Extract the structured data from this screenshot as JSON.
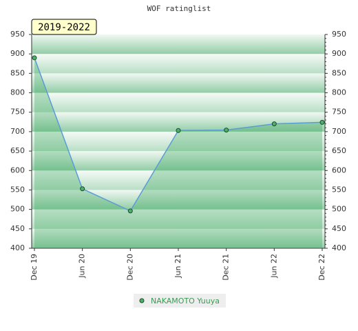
{
  "chart_data": {
    "type": "line",
    "title": "WOF ratinglist",
    "annotation": "2019-2022",
    "categories": [
      "Dec 19",
      "Jun 20",
      "Dec 20",
      "Jun 21",
      "Dec 21",
      "Jun 22",
      "Dec 22"
    ],
    "series": [
      {
        "name": "NAKAMOTO Yuuya",
        "color": "#5b9bd5",
        "values": [
          890,
          553,
          496,
          703,
          704,
          720,
          724
        ]
      }
    ],
    "ylim": [
      400,
      950
    ],
    "yticks": [
      400,
      450,
      500,
      550,
      600,
      650,
      700,
      750,
      800,
      850,
      900,
      950
    ],
    "legend": "bottom"
  }
}
